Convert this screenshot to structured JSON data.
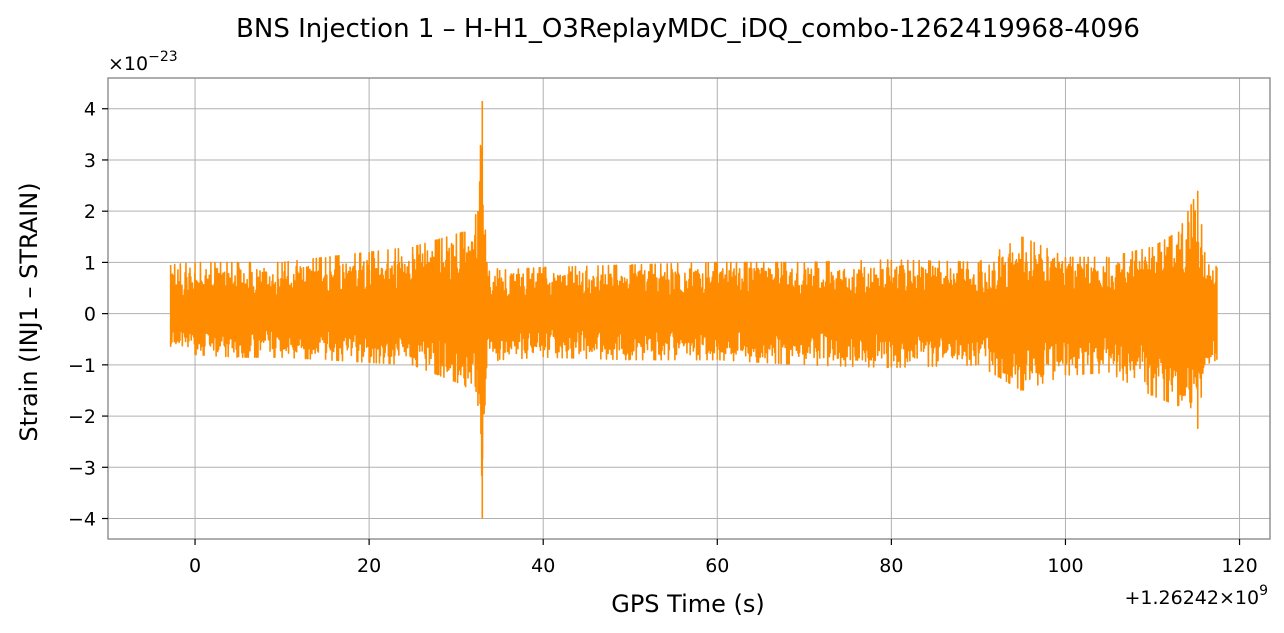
{
  "chart_data": {
    "type": "line",
    "title": "BNS Injection 1 – H-H1_O3ReplayMDC_iDQ_combo-1262419968-4096",
    "xlabel": "GPS Time (s)",
    "ylabel": "Strain (INJ1 – STRAIN)",
    "xlim": [
      -10,
      123.5
    ],
    "ylim": [
      -4.4,
      4.6
    ],
    "x_offset_text": "+1.26242×10",
    "x_offset_exponent": "9",
    "y_scale_text": "×10",
    "y_scale_exponent": "−23",
    "x_ticks": [
      0,
      20,
      40,
      60,
      80,
      100,
      120
    ],
    "x_tick_labels": [
      "0",
      "20",
      "40",
      "60",
      "80",
      "100",
      "120"
    ],
    "y_ticks": [
      4,
      3,
      2,
      1,
      0,
      -1,
      -2,
      -3,
      -4
    ],
    "y_tick_labels": [
      "4",
      "3",
      "2",
      "1",
      "0",
      "−1",
      "−2",
      "−3",
      "−4"
    ],
    "grid": true,
    "series": [
      {
        "color": "#ff8c00",
        "x_range": [
          -2.8,
          117.4
        ],
        "envelope": [
          {
            "x": -2.8,
            "max": 0.95,
            "min": -0.65
          },
          {
            "x": 0,
            "max": 1.0,
            "min": -0.8
          },
          {
            "x": 5,
            "max": 1.0,
            "min": -0.85
          },
          {
            "x": 10,
            "max": 1.0,
            "min": -0.85
          },
          {
            "x": 15,
            "max": 1.1,
            "min": -0.9
          },
          {
            "x": 20,
            "max": 1.2,
            "min": -0.95
          },
          {
            "x": 25,
            "max": 1.3,
            "min": -1.0
          },
          {
            "x": 28,
            "max": 1.45,
            "min": -1.2
          },
          {
            "x": 31,
            "max": 1.6,
            "min": -1.4
          },
          {
            "x": 32.5,
            "max": 2.0,
            "min": -1.8
          },
          {
            "x": 33.0,
            "max": 4.15,
            "min": -4.0
          },
          {
            "x": 33.5,
            "max": 1.0,
            "min": -1.0
          },
          {
            "x": 35,
            "max": 0.85,
            "min": -0.9
          },
          {
            "x": 40,
            "max": 0.9,
            "min": -0.85
          },
          {
            "x": 50,
            "max": 0.95,
            "min": -0.9
          },
          {
            "x": 60,
            "max": 1.0,
            "min": -0.9
          },
          {
            "x": 70,
            "max": 1.0,
            "min": -1.0
          },
          {
            "x": 80,
            "max": 1.05,
            "min": -1.05
          },
          {
            "x": 90,
            "max": 1.0,
            "min": -1.0
          },
          {
            "x": 95,
            "max": 1.5,
            "min": -1.5
          },
          {
            "x": 100,
            "max": 1.1,
            "min": -1.2
          },
          {
            "x": 105,
            "max": 1.1,
            "min": -1.15
          },
          {
            "x": 110,
            "max": 1.3,
            "min": -1.6
          },
          {
            "x": 113,
            "max": 1.6,
            "min": -1.8
          },
          {
            "x": 115.2,
            "max": 2.4,
            "min": -2.25
          },
          {
            "x": 116,
            "max": 1.2,
            "min": -1.0
          },
          {
            "x": 117.4,
            "max": 0.9,
            "min": -0.9
          }
        ]
      }
    ]
  }
}
